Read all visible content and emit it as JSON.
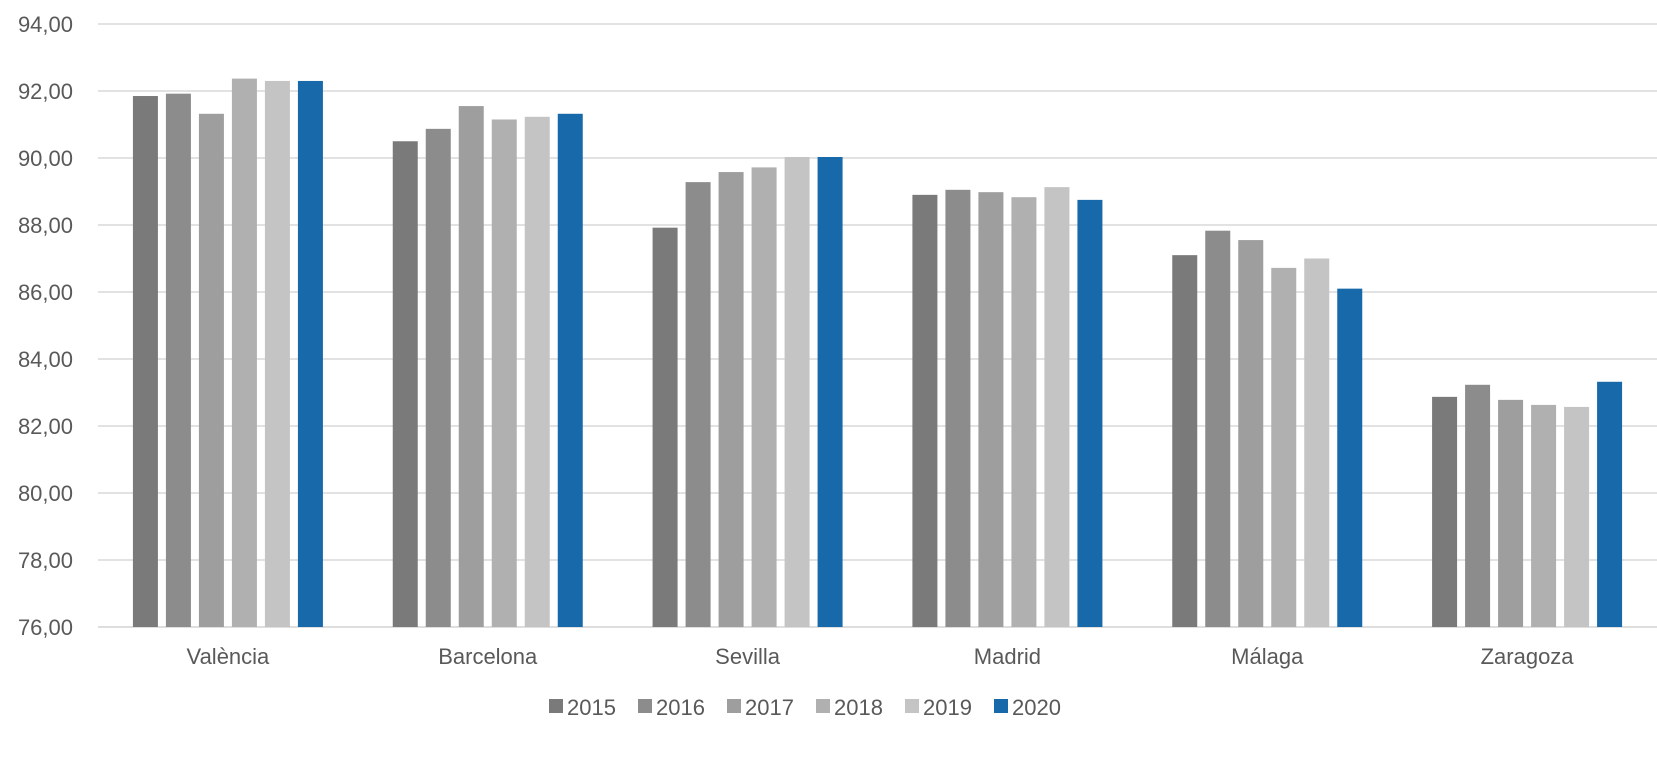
{
  "chart_data": {
    "type": "bar",
    "title": "",
    "xlabel": "",
    "ylabel": "",
    "categories": [
      "València",
      "Barcelona",
      "Sevilla",
      "Madrid",
      "Málaga",
      "Zaragoza"
    ],
    "series": [
      {
        "name": "2015",
        "color": "#7a7a7a",
        "values": [
          91.85,
          90.5,
          87.92,
          88.9,
          87.1,
          82.87
        ]
      },
      {
        "name": "2016",
        "color": "#8c8c8c",
        "values": [
          91.92,
          90.87,
          89.28,
          89.05,
          87.83,
          83.23
        ]
      },
      {
        "name": "2017",
        "color": "#9e9e9e",
        "values": [
          91.32,
          91.55,
          89.58,
          88.98,
          87.55,
          82.78
        ]
      },
      {
        "name": "2018",
        "color": "#b0b0b0",
        "values": [
          92.37,
          91.15,
          89.72,
          88.83,
          86.72,
          82.63
        ]
      },
      {
        "name": "2019",
        "color": "#c4c4c4",
        "values": [
          92.3,
          91.23,
          90.03,
          89.13,
          87.0,
          82.57
        ]
      },
      {
        "name": "2020",
        "color": "#1769aa",
        "values": [
          92.3,
          91.32,
          90.03,
          88.75,
          86.1,
          83.32
        ]
      }
    ],
    "ylim": [
      76,
      94
    ],
    "yticks": [
      "94,00",
      "92,00",
      "90,00",
      "88,00",
      "86,00",
      "84,00",
      "82,00",
      "80,00",
      "78,00",
      "76,00"
    ],
    "ytick_values": [
      94,
      92,
      90,
      88,
      86,
      84,
      82,
      80,
      78,
      76
    ],
    "grid": true,
    "legend_position": "bottom"
  }
}
